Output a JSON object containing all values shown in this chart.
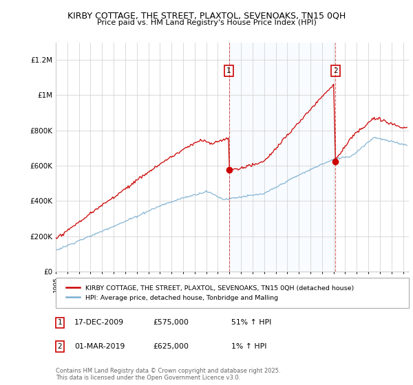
{
  "title1": "KIRBY COTTAGE, THE STREET, PLAXTOL, SEVENOAKS, TN15 0QH",
  "title2": "Price paid vs. HM Land Registry's House Price Index (HPI)",
  "ylabel_ticks": [
    "£0",
    "£200K",
    "£400K",
    "£600K",
    "£800K",
    "£1M",
    "£1.2M"
  ],
  "ytick_vals": [
    0,
    200000,
    400000,
    600000,
    800000,
    1000000,
    1200000
  ],
  "ylim": [
    0,
    1300000
  ],
  "xlim_start": 1995.0,
  "xlim_end": 2025.5,
  "sale1_date": 2009.96,
  "sale2_date": 2019.16,
  "sale1_price": 575000,
  "sale2_price": 625000,
  "legend_line1": "KIRBY COTTAGE, THE STREET, PLAXTOL, SEVENOAKS, TN15 0QH (detached house)",
  "legend_line2": "HPI: Average price, detached house, Tonbridge and Malling",
  "annot1_date": "17-DEC-2009",
  "annot1_price": "£575,000",
  "annot1_hpi": "51% ↑ HPI",
  "annot2_date": "01-MAR-2019",
  "annot2_price": "£625,000",
  "annot2_hpi": "1% ↑ HPI",
  "footer": "Contains HM Land Registry data © Crown copyright and database right 2025.\nThis data is licensed under the Open Government Licence v3.0.",
  "red_color": "#cc0000",
  "blue_color": "#7aadcf",
  "shade_color": "#ddeeff",
  "grid_color": "#cccccc",
  "bg_color": "#ffffff"
}
